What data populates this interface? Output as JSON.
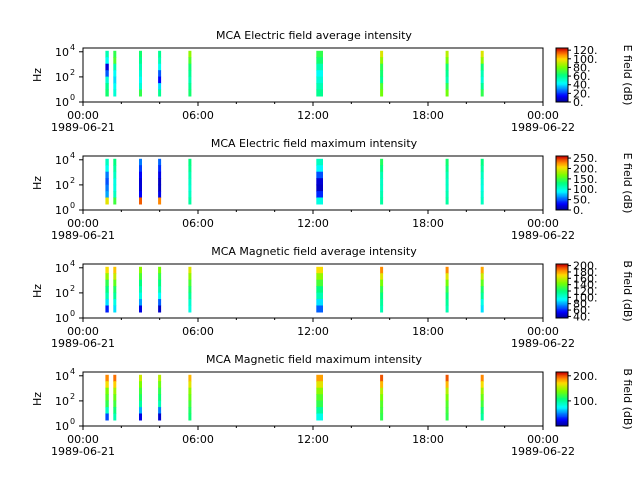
{
  "chart_data": [
    {
      "type": "heatmap",
      "title": "MCA  Electric field average intensity",
      "ylabel": "Hz",
      "y_scale": "log",
      "ylim": [
        1,
        20000
      ],
      "y_ticks": [
        {
          "value": 1,
          "base": "10",
          "exp": "0"
        },
        {
          "value": 100,
          "base": "10",
          "exp": "2"
        },
        {
          "value": 10000,
          "base": "10",
          "exp": "4"
        }
      ],
      "x_ticks": [
        "00:00",
        "06:00",
        "12:00",
        "18:00",
        "00:00"
      ],
      "x_dates": [
        "1989-06-21",
        "1989-06-22"
      ],
      "colorbar_label": "E field (dB)",
      "colorbar_ticks": [
        {
          "value": 0,
          "label": "0."
        },
        {
          "value": 20,
          "label": "20."
        },
        {
          "value": 40,
          "label": "40."
        },
        {
          "value": 60,
          "label": "60."
        },
        {
          "value": 80,
          "label": "80."
        },
        {
          "value": 100,
          "label": "100."
        },
        {
          "value": 120,
          "label": "120."
        }
      ],
      "colorbar_range": [
        0,
        125
      ],
      "bursts": [
        {
          "time": "01:10",
          "hours": 1.17,
          "duration_h": 0.18,
          "levels": [
            55,
            45,
            10,
            25,
            50,
            60,
            65
          ]
        },
        {
          "time": "01:35",
          "hours": 1.58,
          "duration_h": 0.15,
          "levels": [
            70,
            75,
            55,
            45,
            40,
            45,
            50
          ]
        },
        {
          "time": "02:55",
          "hours": 2.92,
          "duration_h": 0.08,
          "levels": [
            65,
            60,
            55,
            50,
            45,
            50,
            70
          ]
        },
        {
          "time": "03:55",
          "hours": 3.92,
          "duration_h": 0.08,
          "levels": [
            60,
            55,
            45,
            25,
            15,
            40,
            60
          ]
        },
        {
          "time": "05:30",
          "hours": 5.5,
          "duration_h": 0.15,
          "levels": [
            85,
            75,
            65,
            60,
            55,
            60,
            65
          ]
        },
        {
          "time": "12:10",
          "hours": 12.17,
          "duration_h": 0.35,
          "levels": [
            70,
            65,
            55,
            45,
            50,
            55,
            60
          ]
        },
        {
          "time": "15:30",
          "hours": 15.5,
          "duration_h": 0.1,
          "levels": [
            95,
            85,
            70,
            65,
            60,
            75,
            80
          ]
        },
        {
          "time": "18:55",
          "hours": 18.92,
          "duration_h": 0.1,
          "levels": [
            90,
            80,
            65,
            60,
            55,
            70,
            80
          ]
        },
        {
          "time": "20:45",
          "hours": 20.75,
          "duration_h": 0.12,
          "levels": [
            95,
            85,
            65,
            55,
            50,
            60,
            70
          ]
        }
      ]
    },
    {
      "type": "heatmap",
      "title": "MCA  Electric field maximum intensity",
      "ylabel": "Hz",
      "y_scale": "log",
      "ylim": [
        1,
        20000
      ],
      "y_ticks": [
        {
          "value": 1,
          "base": "10",
          "exp": "0"
        },
        {
          "value": 100,
          "base": "10",
          "exp": "2"
        },
        {
          "value": 10000,
          "base": "10",
          "exp": "4"
        }
      ],
      "x_ticks": [
        "00:00",
        "06:00",
        "12:00",
        "18:00",
        "00:00"
      ],
      "x_dates": [
        "1989-06-21",
        "1989-06-22"
      ],
      "colorbar_label": "E field (dB)",
      "colorbar_ticks": [
        {
          "value": 0,
          "label": "0."
        },
        {
          "value": 50,
          "label": "50."
        },
        {
          "value": 100,
          "label": "100."
        },
        {
          "value": 150,
          "label": "150."
        },
        {
          "value": 200,
          "label": "200."
        },
        {
          "value": 250,
          "label": "250."
        }
      ],
      "colorbar_range": [
        0,
        260
      ],
      "bursts": [
        {
          "time": "01:10",
          "hours": 1.17,
          "duration_h": 0.18,
          "levels": [
            110,
            95,
            60,
            50,
            60,
            70,
            200
          ]
        },
        {
          "time": "01:35",
          "hours": 1.58,
          "duration_h": 0.15,
          "levels": [
            130,
            120,
            110,
            100,
            100,
            110,
            150
          ]
        },
        {
          "time": "02:55",
          "hours": 2.92,
          "duration_h": 0.08,
          "levels": [
            60,
            45,
            30,
            20,
            20,
            30,
            240
          ]
        },
        {
          "time": "03:55",
          "hours": 3.92,
          "duration_h": 0.08,
          "levels": [
            55,
            40,
            25,
            15,
            15,
            25,
            230
          ]
        },
        {
          "time": "05:30",
          "hours": 5.5,
          "duration_h": 0.15,
          "levels": [
            130,
            125,
            115,
            110,
            105,
            110,
            120
          ]
        },
        {
          "time": "12:10",
          "hours": 12.17,
          "duration_h": 0.35,
          "levels": [
            110,
            90,
            50,
            20,
            15,
            40,
            100
          ]
        },
        {
          "time": "15:30",
          "hours": 15.5,
          "duration_h": 0.1,
          "levels": [
            140,
            130,
            115,
            110,
            110,
            115,
            120
          ]
        },
        {
          "time": "18:55",
          "hours": 18.92,
          "duration_h": 0.1,
          "levels": [
            135,
            125,
            115,
            110,
            110,
            115,
            120
          ]
        },
        {
          "time": "20:45",
          "hours": 20.75,
          "duration_h": 0.12,
          "levels": [
            130,
            120,
            110,
            105,
            100,
            105,
            110
          ]
        }
      ]
    },
    {
      "type": "heatmap",
      "title": "MCA  Magnetic field average intensity",
      "ylabel": "Hz",
      "y_scale": "log",
      "ylim": [
        1,
        20000
      ],
      "y_ticks": [
        {
          "value": 1,
          "base": "10",
          "exp": "0"
        },
        {
          "value": 100,
          "base": "10",
          "exp": "2"
        },
        {
          "value": 10000,
          "base": "10",
          "exp": "4"
        }
      ],
      "x_ticks": [
        "00:00",
        "06:00",
        "12:00",
        "18:00",
        "00:00"
      ],
      "x_dates": [
        "1989-06-21",
        "1989-06-22"
      ],
      "colorbar_label": "B field (dB)",
      "colorbar_ticks": [
        {
          "value": 40,
          "label": "40."
        },
        {
          "value": 60,
          "label": "60."
        },
        {
          "value": 80,
          "label": "80."
        },
        {
          "value": 100,
          "label": "100."
        },
        {
          "value": 120,
          "label": "120."
        },
        {
          "value": 140,
          "label": "140."
        },
        {
          "value": 160,
          "label": "160."
        },
        {
          "value": 180,
          "label": "180."
        },
        {
          "value": 200,
          "label": "200."
        }
      ],
      "colorbar_range": [
        35,
        205
      ],
      "bursts": [
        {
          "time": "01:10",
          "hours": 1.17,
          "duration_h": 0.18,
          "levels": [
            170,
            150,
            130,
            120,
            110,
            90,
            60
          ]
        },
        {
          "time": "01:35",
          "hours": 1.58,
          "duration_h": 0.15,
          "levels": [
            175,
            160,
            140,
            125,
            115,
            100,
            90
          ]
        },
        {
          "time": "02:55",
          "hours": 2.92,
          "duration_h": 0.08,
          "levels": [
            150,
            135,
            120,
            110,
            100,
            80,
            50
          ]
        },
        {
          "time": "03:55",
          "hours": 3.92,
          "duration_h": 0.08,
          "levels": [
            145,
            130,
            120,
            110,
            95,
            70,
            45
          ]
        },
        {
          "time": "05:30",
          "hours": 5.5,
          "duration_h": 0.15,
          "levels": [
            165,
            150,
            135,
            125,
            115,
            105,
            100
          ]
        },
        {
          "time": "12:10",
          "hours": 12.17,
          "duration_h": 0.35,
          "levels": [
            170,
            150,
            135,
            120,
            110,
            90,
            70
          ]
        },
        {
          "time": "15:30",
          "hours": 15.5,
          "duration_h": 0.1,
          "levels": [
            185,
            165,
            145,
            130,
            120,
            115,
            110
          ]
        },
        {
          "time": "18:55",
          "hours": 18.92,
          "duration_h": 0.1,
          "levels": [
            185,
            165,
            145,
            130,
            120,
            115,
            110
          ]
        },
        {
          "time": "20:45",
          "hours": 20.75,
          "duration_h": 0.12,
          "levels": [
            180,
            160,
            140,
            125,
            115,
            100,
            90
          ]
        }
      ]
    },
    {
      "type": "heatmap",
      "title": "MCA  Magnetic field maximum intensity",
      "ylabel": "Hz",
      "y_scale": "log",
      "ylim": [
        1,
        20000
      ],
      "y_ticks": [
        {
          "value": 1,
          "base": "10",
          "exp": "0"
        },
        {
          "value": 100,
          "base": "10",
          "exp": "2"
        },
        {
          "value": 10000,
          "base": "10",
          "exp": "4"
        }
      ],
      "x_ticks": [
        "00:00",
        "06:00",
        "12:00",
        "18:00",
        "00:00"
      ],
      "x_dates": [
        "1989-06-21",
        "1989-06-22"
      ],
      "colorbar_label": "B field (dB)",
      "colorbar_ticks": [
        {
          "value": 100,
          "label": "100."
        },
        {
          "value": 200,
          "label": "200."
        }
      ],
      "colorbar_range": [
        0,
        215
      ],
      "bursts": [
        {
          "time": "01:10",
          "hours": 1.17,
          "duration_h": 0.18,
          "levels": [
            190,
            170,
            140,
            130,
            120,
            90,
            40
          ]
        },
        {
          "time": "01:35",
          "hours": 1.58,
          "duration_h": 0.15,
          "levels": [
            195,
            175,
            150,
            135,
            125,
            110,
            95
          ]
        },
        {
          "time": "02:55",
          "hours": 2.92,
          "duration_h": 0.08,
          "levels": [
            160,
            140,
            125,
            115,
            100,
            60,
            20
          ]
        },
        {
          "time": "03:55",
          "hours": 3.92,
          "duration_h": 0.08,
          "levels": [
            155,
            135,
            120,
            110,
            95,
            50,
            15
          ]
        },
        {
          "time": "05:30",
          "hours": 5.5,
          "duration_h": 0.15,
          "levels": [
            180,
            165,
            145,
            135,
            125,
            115,
            110
          ]
        },
        {
          "time": "12:10",
          "hours": 12.17,
          "duration_h": 0.35,
          "levels": [
            185,
            165,
            145,
            130,
            120,
            100,
            80
          ]
        },
        {
          "time": "15:30",
          "hours": 15.5,
          "duration_h": 0.1,
          "levels": [
            200,
            180,
            155,
            140,
            130,
            125,
            120
          ]
        },
        {
          "time": "18:55",
          "hours": 18.92,
          "duration_h": 0.1,
          "levels": [
            200,
            180,
            155,
            140,
            130,
            125,
            120
          ]
        },
        {
          "time": "20:45",
          "hours": 20.75,
          "duration_h": 0.12,
          "levels": [
            190,
            170,
            150,
            135,
            125,
            110,
            100
          ]
        }
      ]
    }
  ]
}
